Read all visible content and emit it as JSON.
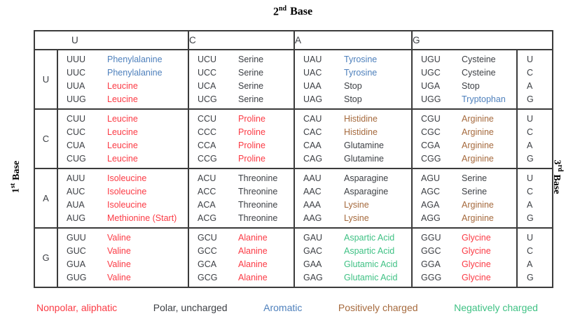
{
  "axis": {
    "top": {
      "number": "2",
      "ordinal": "nd",
      "word": "Base"
    },
    "left": {
      "number": "1",
      "ordinal": "st",
      "word": "Base"
    },
    "right": {
      "number": "3",
      "ordinal": "rd",
      "word": "Base"
    }
  },
  "colors": {
    "dark": "#3C3F44",
    "border": "#3B3B3B",
    "nonpolar": "#FB3A44",
    "polar": "#3C3F44",
    "aromatic": "#4E80BC",
    "positive": "#A5693C",
    "negative": "#3FC184"
  },
  "header": {
    "second_bases": [
      "U",
      "C",
      "A",
      "G"
    ]
  },
  "table": {
    "groups": [
      {
        "first_base": "U",
        "cells": [
          [
            {
              "codon": "UUU",
              "amino_acid": "Phenylalanine",
              "category": "aromatic"
            },
            {
              "codon": "UUC",
              "amino_acid": "Phenylalanine",
              "category": "aromatic"
            },
            {
              "codon": "UUA",
              "amino_acid": "Leucine",
              "category": "nonpolar"
            },
            {
              "codon": "UUG",
              "amino_acid": "Leucine",
              "category": "nonpolar"
            }
          ],
          [
            {
              "codon": "UCU",
              "amino_acid": "Serine",
              "category": "polar"
            },
            {
              "codon": "UCC",
              "amino_acid": "Serine",
              "category": "polar"
            },
            {
              "codon": "UCA",
              "amino_acid": "Serine",
              "category": "polar"
            },
            {
              "codon": "UCG",
              "amino_acid": "Serine",
              "category": "polar"
            }
          ],
          [
            {
              "codon": "UAU",
              "amino_acid": "Tyrosine",
              "category": "aromatic"
            },
            {
              "codon": "UAC",
              "amino_acid": "Tyrosine",
              "category": "aromatic"
            },
            {
              "codon": "UAA",
              "amino_acid": "Stop",
              "category": "polar"
            },
            {
              "codon": "UAG",
              "amino_acid": "Stop",
              "category": "polar"
            }
          ],
          [
            {
              "codon": "UGU",
              "amino_acid": "Cysteine",
              "category": "polar"
            },
            {
              "codon": "UGC",
              "amino_acid": "Cysteine",
              "category": "polar"
            },
            {
              "codon": "UGA",
              "amino_acid": "Stop",
              "category": "polar"
            },
            {
              "codon": "UGG",
              "amino_acid": "Tryptophan",
              "category": "aromatic"
            }
          ]
        ],
        "third_bases": [
          "U",
          "C",
          "A",
          "G"
        ]
      },
      {
        "first_base": "C",
        "cells": [
          [
            {
              "codon": "CUU",
              "amino_acid": "Leucine",
              "category": "nonpolar"
            },
            {
              "codon": "CUC",
              "amino_acid": "Leucine",
              "category": "nonpolar"
            },
            {
              "codon": "CUA",
              "amino_acid": "Leucine",
              "category": "nonpolar"
            },
            {
              "codon": "CUG",
              "amino_acid": "Leucine",
              "category": "nonpolar"
            }
          ],
          [
            {
              "codon": "CCU",
              "amino_acid": "Proline",
              "category": "nonpolar"
            },
            {
              "codon": "CCC",
              "amino_acid": "Proline",
              "category": "nonpolar"
            },
            {
              "codon": "CCA",
              "amino_acid": "Proline",
              "category": "nonpolar"
            },
            {
              "codon": "CCG",
              "amino_acid": "Proline",
              "category": "nonpolar"
            }
          ],
          [
            {
              "codon": "CAU",
              "amino_acid": "Histidine",
              "category": "positive"
            },
            {
              "codon": "CAC",
              "amino_acid": "Histidine",
              "category": "positive"
            },
            {
              "codon": "CAA",
              "amino_acid": "Glutamine",
              "category": "polar"
            },
            {
              "codon": "CAG",
              "amino_acid": "Glutamine",
              "category": "polar"
            }
          ],
          [
            {
              "codon": "CGU",
              "amino_acid": "Arginine",
              "category": "positive"
            },
            {
              "codon": "CGC",
              "amino_acid": "Arginine",
              "category": "positive"
            },
            {
              "codon": "CGA",
              "amino_acid": "Arginine",
              "category": "positive"
            },
            {
              "codon": "CGG",
              "amino_acid": "Arginine",
              "category": "positive"
            }
          ]
        ],
        "third_bases": [
          "U",
          "C",
          "A",
          "G"
        ]
      },
      {
        "first_base": "A",
        "cells": [
          [
            {
              "codon": "AUU",
              "amino_acid": "Isoleucine",
              "category": "nonpolar"
            },
            {
              "codon": "AUC",
              "amino_acid": "Isoleucine",
              "category": "nonpolar"
            },
            {
              "codon": "AUA",
              "amino_acid": "Isoleucine",
              "category": "nonpolar"
            },
            {
              "codon": "AUG",
              "amino_acid": "Methionine (Start)",
              "category": "nonpolar"
            }
          ],
          [
            {
              "codon": "ACU",
              "amino_acid": "Threonine",
              "category": "polar"
            },
            {
              "codon": "ACC",
              "amino_acid": "Threonine",
              "category": "polar"
            },
            {
              "codon": "ACA",
              "amino_acid": "Threonine",
              "category": "polar"
            },
            {
              "codon": "ACG",
              "amino_acid": "Threonine",
              "category": "polar"
            }
          ],
          [
            {
              "codon": "AAU",
              "amino_acid": "Asparagine",
              "category": "polar"
            },
            {
              "codon": "AAC",
              "amino_acid": "Asparagine",
              "category": "polar"
            },
            {
              "codon": "AAA",
              "amino_acid": "Lysine",
              "category": "positive"
            },
            {
              "codon": "AAG",
              "amino_acid": "Lysine",
              "category": "positive"
            }
          ],
          [
            {
              "codon": "AGU",
              "amino_acid": "Serine",
              "category": "polar"
            },
            {
              "codon": "AGC",
              "amino_acid": "Serine",
              "category": "polar"
            },
            {
              "codon": "AGA",
              "amino_acid": "Arginine",
              "category": "positive"
            },
            {
              "codon": "AGG",
              "amino_acid": "Arginine",
              "category": "positive"
            }
          ]
        ],
        "third_bases": [
          "U",
          "C",
          "A",
          "G"
        ]
      },
      {
        "first_base": "G",
        "cells": [
          [
            {
              "codon": "GUU",
              "amino_acid": "Valine",
              "category": "nonpolar"
            },
            {
              "codon": "GUC",
              "amino_acid": "Valine",
              "category": "nonpolar"
            },
            {
              "codon": "GUA",
              "amino_acid": "Valine",
              "category": "nonpolar"
            },
            {
              "codon": "GUG",
              "amino_acid": "Valine",
              "category": "nonpolar"
            }
          ],
          [
            {
              "codon": "GCU",
              "amino_acid": "Alanine",
              "category": "nonpolar"
            },
            {
              "codon": "GCC",
              "amino_acid": "Alanine",
              "category": "nonpolar"
            },
            {
              "codon": "GCA",
              "amino_acid": "Alanine",
              "category": "nonpolar"
            },
            {
              "codon": "GCG",
              "amino_acid": "Alanine",
              "category": "nonpolar"
            }
          ],
          [
            {
              "codon": "GAU",
              "amino_acid": "Aspartic Acid",
              "category": "negative"
            },
            {
              "codon": "GAC",
              "amino_acid": "Aspartic Acid",
              "category": "negative"
            },
            {
              "codon": "GAA",
              "amino_acid": "Glutamic Acid",
              "category": "negative"
            },
            {
              "codon": "GAG",
              "amino_acid": "Glutamic Acid",
              "category": "negative"
            }
          ],
          [
            {
              "codon": "GGU",
              "amino_acid": "Glycine",
              "category": "nonpolar"
            },
            {
              "codon": "GGC",
              "amino_acid": "Glycine",
              "category": "nonpolar"
            },
            {
              "codon": "GGA",
              "amino_acid": "Glycine",
              "category": "nonpolar"
            },
            {
              "codon": "GGG",
              "amino_acid": "Glycine",
              "category": "nonpolar"
            }
          ]
        ],
        "third_bases": [
          "U",
          "C",
          "A",
          "G"
        ]
      }
    ]
  },
  "legend": [
    {
      "label": "Nonpolar, aliphatic",
      "category": "nonpolar"
    },
    {
      "label": "Polar, uncharged",
      "category": "polar"
    },
    {
      "label": "Aromatic",
      "category": "aromatic"
    },
    {
      "label": "Positively charged",
      "category": "positive"
    },
    {
      "label": "Negatively charged",
      "category": "negative"
    }
  ]
}
